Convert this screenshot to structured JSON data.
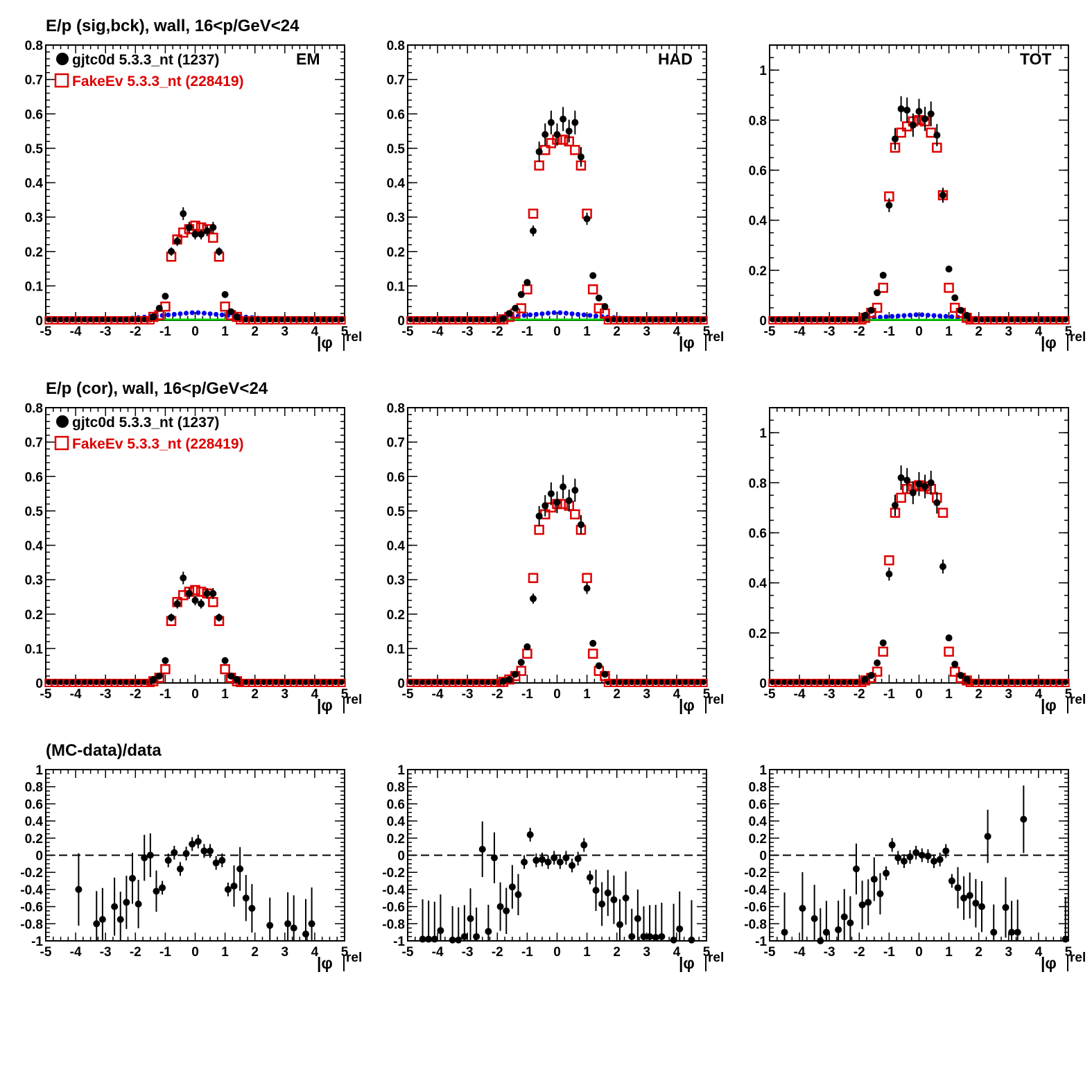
{
  "row_titles": [
    "E/p (sig,bck), wall, 16<p/GeV<24",
    "E/p (cor), wall, 16<p/GeV<24",
    "(MC-data)/data"
  ],
  "legend": [
    {
      "label": "gjtc0d 5.3.3_nt (1237)",
      "color": "#000000",
      "marker": "filled-circle"
    },
    {
      "label": "FakeEv 5.3.3_nt (228419)",
      "color": "#dd0000",
      "marker": "open-square"
    }
  ],
  "colors": {
    "data": "#000000",
    "mc": "#dd0000",
    "bck_blue": "#0000ee",
    "bck_green": "#00cc00",
    "reference_line": "#000000"
  },
  "panel_labels": [
    "EM",
    "HAD",
    "TOT"
  ],
  "x_axis_label": "|φ rel|",
  "chart_data": [
    {
      "type": "scatter",
      "row": 0,
      "col": 0,
      "label": "EM",
      "xlim": [
        -5,
        5
      ],
      "ylim": [
        0,
        0.8
      ],
      "x": [
        -1.4,
        -1.2,
        -1.0,
        -0.8,
        -0.6,
        -0.4,
        -0.2,
        0.0,
        0.2,
        0.4,
        0.6,
        0.8,
        1.0,
        1.2,
        1.4
      ],
      "series": [
        {
          "values": [
            0.01,
            0.035,
            0.07,
            0.2,
            0.23,
            0.31,
            0.27,
            0.25,
            0.25,
            0.26,
            0.27,
            0.2,
            0.075,
            0.025,
            0.01
          ]
        },
        {
          "values": [
            0.01,
            0.015,
            0.04,
            0.185,
            0.235,
            0.255,
            0.265,
            0.275,
            0.27,
            0.265,
            0.24,
            0.185,
            0.04,
            0.015,
            0.01
          ]
        }
      ]
    },
    {
      "type": "scatter",
      "row": 0,
      "col": 1,
      "label": "HAD",
      "xlim": [
        -5,
        5
      ],
      "ylim": [
        0,
        0.8
      ],
      "x": [
        -1.8,
        -1.6,
        -1.4,
        -1.2,
        -1.0,
        -0.8,
        -0.6,
        -0.4,
        -0.2,
        0.0,
        0.2,
        0.4,
        0.6,
        0.8,
        1.0,
        1.2,
        1.4,
        1.6
      ],
      "series": [
        {
          "values": [
            0.005,
            0.02,
            0.035,
            0.075,
            0.11,
            0.26,
            0.49,
            0.54,
            0.575,
            0.54,
            0.585,
            0.55,
            0.575,
            0.475,
            0.295,
            0.13,
            0.065,
            0.04
          ]
        },
        {
          "values": [
            0.003,
            0.01,
            0.02,
            0.035,
            0.09,
            0.31,
            0.45,
            0.495,
            0.515,
            0.525,
            0.525,
            0.52,
            0.495,
            0.45,
            0.31,
            0.09,
            0.035,
            0.02
          ]
        }
      ]
    },
    {
      "type": "scatter",
      "row": 0,
      "col": 2,
      "label": "TOT",
      "xlim": [
        -5,
        5
      ],
      "ylim": [
        0,
        1.1
      ],
      "x": [
        -1.8,
        -1.6,
        -1.4,
        -1.2,
        -1.0,
        -0.8,
        -0.6,
        -0.4,
        -0.2,
        0.0,
        0.2,
        0.4,
        0.6,
        0.8,
        1.0,
        1.2,
        1.4,
        1.6
      ],
      "series": [
        {
          "values": [
            0.02,
            0.04,
            0.11,
            0.18,
            0.46,
            0.725,
            0.845,
            0.84,
            0.78,
            0.835,
            0.805,
            0.825,
            0.74,
            0.5,
            0.205,
            0.09,
            0.04,
            0.02
          ]
        },
        {
          "values": [
            0.01,
            0.03,
            0.05,
            0.13,
            0.495,
            0.69,
            0.75,
            0.775,
            0.795,
            0.8,
            0.795,
            0.75,
            0.69,
            0.5,
            0.13,
            0.05,
            0.03,
            0.01
          ]
        }
      ]
    },
    {
      "type": "scatter",
      "row": 1,
      "col": 0,
      "label": "",
      "xlim": [
        -5,
        5
      ],
      "ylim": [
        0,
        0.8
      ],
      "x": [
        -1.4,
        -1.2,
        -1.0,
        -0.8,
        -0.6,
        -0.4,
        -0.2,
        0.0,
        0.2,
        0.4,
        0.6,
        0.8,
        1.0,
        1.2,
        1.4
      ],
      "series": [
        {
          "values": [
            0.01,
            0.02,
            0.065,
            0.19,
            0.23,
            0.305,
            0.26,
            0.24,
            0.23,
            0.26,
            0.26,
            0.19,
            0.065,
            0.02,
            0.01
          ]
        },
        {
          "values": [
            0.005,
            0.015,
            0.04,
            0.18,
            0.235,
            0.255,
            0.265,
            0.27,
            0.265,
            0.26,
            0.235,
            0.18,
            0.04,
            0.015,
            0.005
          ]
        }
      ]
    },
    {
      "type": "scatter",
      "row": 1,
      "col": 1,
      "label": "",
      "xlim": [
        -5,
        5
      ],
      "ylim": [
        0,
        0.8
      ],
      "x": [
        -1.8,
        -1.6,
        -1.4,
        -1.2,
        -1.0,
        -0.8,
        -0.6,
        -0.4,
        -0.2,
        0.0,
        0.2,
        0.4,
        0.6,
        0.8,
        1.0,
        1.2,
        1.4,
        1.6
      ],
      "series": [
        {
          "values": [
            0.005,
            0.01,
            0.025,
            0.06,
            0.105,
            0.245,
            0.485,
            0.515,
            0.55,
            0.525,
            0.57,
            0.53,
            0.56,
            0.46,
            0.275,
            0.115,
            0.05,
            0.025
          ]
        },
        {
          "values": [
            0.003,
            0.01,
            0.02,
            0.035,
            0.085,
            0.305,
            0.445,
            0.49,
            0.51,
            0.52,
            0.52,
            0.515,
            0.49,
            0.445,
            0.305,
            0.085,
            0.035,
            0.02
          ]
        }
      ]
    },
    {
      "type": "scatter",
      "row": 1,
      "col": 2,
      "label": "",
      "xlim": [
        -5,
        5
      ],
      "ylim": [
        0,
        1.1
      ],
      "x": [
        -1.8,
        -1.6,
        -1.4,
        -1.2,
        -1.0,
        -0.8,
        -0.6,
        -0.4,
        -0.2,
        0.0,
        0.2,
        0.4,
        0.6,
        0.8,
        1.0,
        1.2,
        1.4,
        1.6
      ],
      "series": [
        {
          "values": [
            0.015,
            0.03,
            0.08,
            0.16,
            0.435,
            0.71,
            0.82,
            0.81,
            0.76,
            0.795,
            0.785,
            0.8,
            0.72,
            0.465,
            0.18,
            0.075,
            0.03,
            0.015
          ]
        },
        {
          "values": [
            0.01,
            0.02,
            0.045,
            0.125,
            0.49,
            0.68,
            0.74,
            0.775,
            0.785,
            0.79,
            0.785,
            0.775,
            0.74,
            0.68,
            0.125,
            0.045,
            0.02,
            0.01
          ]
        }
      ]
    },
    {
      "type": "scatter",
      "row": 2,
      "col": 0,
      "label": "",
      "xlim": [
        -5,
        5
      ],
      "ylim": [
        -1,
        1
      ],
      "reference_y": 0,
      "x": [
        -3.9,
        -3.3,
        -3.1,
        -2.7,
        -2.5,
        -2.3,
        -2.1,
        -1.9,
        -1.7,
        -1.5,
        -1.3,
        -1.1,
        -0.9,
        -0.7,
        -0.5,
        -0.3,
        -0.1,
        0.1,
        0.3,
        0.5,
        0.7,
        0.9,
        1.1,
        1.3,
        1.5,
        1.7,
        1.9,
        2.5,
        3.1,
        3.3,
        3.7,
        3.9
      ],
      "series": [
        {
          "values": [
            -0.4,
            -0.8,
            -0.75,
            -0.6,
            -0.75,
            -0.55,
            -0.27,
            -0.57,
            -0.03,
            0.0,
            -0.42,
            -0.38,
            -0.06,
            0.03,
            -0.16,
            0.02,
            0.13,
            0.16,
            0.05,
            0.05,
            -0.09,
            -0.06,
            -0.4,
            -0.36,
            -0.16,
            -0.5,
            -0.62,
            -0.82,
            -0.8,
            -0.85,
            -0.92,
            -0.8
          ]
        }
      ]
    },
    {
      "type": "scatter",
      "row": 2,
      "col": 1,
      "label": "",
      "xlim": [
        -5,
        5
      ],
      "ylim": [
        -1,
        1
      ],
      "reference_y": 0,
      "x": [
        -4.5,
        -4.3,
        -4.1,
        -3.9,
        -3.5,
        -3.3,
        -3.1,
        -2.9,
        -2.7,
        -2.5,
        -2.3,
        -2.1,
        -1.9,
        -1.7,
        -1.5,
        -1.3,
        -1.1,
        -0.9,
        -0.7,
        -0.5,
        -0.3,
        -0.1,
        0.1,
        0.3,
        0.5,
        0.7,
        0.9,
        1.1,
        1.3,
        1.5,
        1.7,
        1.9,
        2.1,
        2.3,
        2.5,
        2.7,
        2.9,
        3.1,
        3.3,
        3.5,
        3.9,
        4.1,
        4.5
      ],
      "series": [
        {
          "values": [
            -0.98,
            -0.98,
            -0.98,
            -0.88,
            -0.99,
            -0.99,
            -0.95,
            -0.74,
            -0.95,
            0.07,
            -0.89,
            -0.03,
            -0.6,
            -0.65,
            -0.37,
            -0.46,
            -0.08,
            0.24,
            -0.06,
            -0.05,
            -0.08,
            -0.03,
            -0.08,
            -0.03,
            -0.12,
            -0.04,
            0.12,
            -0.26,
            -0.41,
            -0.57,
            -0.44,
            -0.52,
            -0.81,
            -0.5,
            -0.95,
            -0.74,
            -0.95,
            -0.95,
            -0.96,
            -0.95,
            -0.99,
            -0.86,
            -0.99
          ]
        }
      ]
    },
    {
      "type": "scatter",
      "row": 2,
      "col": 2,
      "label": "",
      "xlim": [
        -5,
        5
      ],
      "ylim": [
        -1,
        1
      ],
      "reference_y": 0,
      "x": [
        -4.5,
        -3.9,
        -3.5,
        -3.3,
        -3.1,
        -2.7,
        -2.5,
        -2.3,
        -2.1,
        -1.9,
        -1.7,
        -1.5,
        -1.3,
        -1.1,
        -0.9,
        -0.7,
        -0.5,
        -0.3,
        -0.1,
        0.1,
        0.3,
        0.5,
        0.7,
        0.9,
        1.1,
        1.3,
        1.5,
        1.7,
        1.9,
        2.1,
        2.3,
        2.5,
        2.9,
        3.1,
        3.3,
        3.5,
        4.9
      ],
      "series": [
        {
          "values": [
            -0.9,
            -0.62,
            -0.74,
            -1.0,
            -0.9,
            -0.87,
            -0.72,
            -0.79,
            -0.16,
            -0.58,
            -0.55,
            -0.28,
            -0.45,
            -0.21,
            0.12,
            -0.03,
            -0.07,
            -0.02,
            0.03,
            0.0,
            -0.01,
            -0.07,
            -0.05,
            0.05,
            -0.3,
            -0.38,
            -0.5,
            -0.47,
            -0.56,
            -0.6,
            0.22,
            -0.9,
            -0.61,
            -0.9,
            -0.9,
            0.42,
            -0.98
          ]
        }
      ]
    }
  ]
}
